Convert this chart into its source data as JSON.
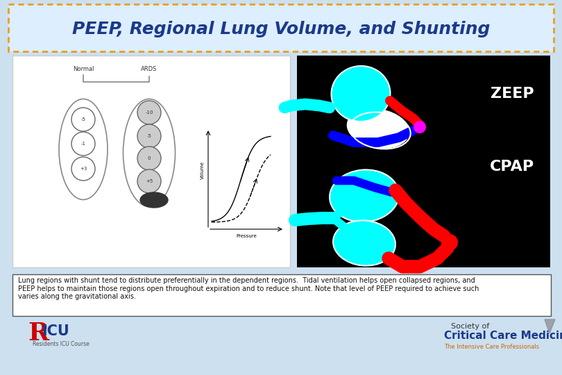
{
  "title": "PEEP, Regional Lung Volume, and Shunting",
  "title_color": "#1a3a8a",
  "title_fontsize": 18,
  "bg_color": "#cce0f0",
  "title_box_border_color": "#e8a020",
  "title_box_face": "#ddeeff",
  "caption_text": "Lung regions with shunt tend to distribute preferentially in the dependent regions.  Tidal ventilation helps open collapsed regions, and\nPEEP helps to maintain those regions open throughout expiration and to reduce shunt. Note that level of PEEP required to achieve such\nvaries along the gravitational axis.",
  "caption_fontsize": 7.0,
  "zeep_label": "ZEEP",
  "cpap_label": "CPAP",
  "label_color": "#ffffff",
  "label_fontsize": 16,
  "right_panel_bg": "#000000",
  "left_panel_bg": "#ffffff",
  "left_panel_border": "#cccccc"
}
